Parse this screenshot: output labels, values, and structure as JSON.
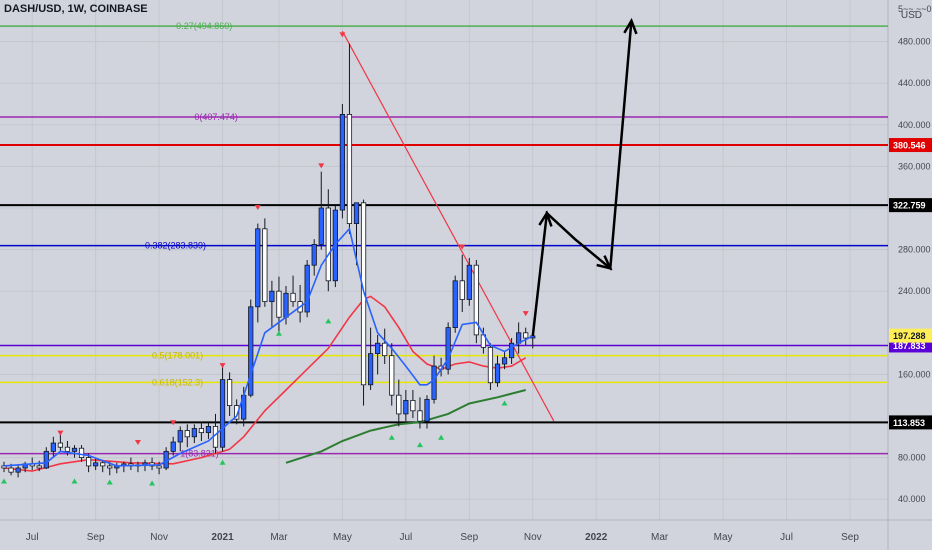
{
  "header": {
    "symbol": "DASH/USD, 1W, COINBASE",
    "currency": "USD",
    "top_tick": "5~~.~~0"
  },
  "colors": {
    "bg": "#d1d4dc",
    "grid": "#c4c7cf",
    "up": "#2962ff",
    "down": "#ffffff",
    "wick": "#131722",
    "ema_fast": "#2962ff",
    "ema_slow": "#f23645",
    "sma": "#2e7d32",
    "arrow_down": "#f23645",
    "arrow_up": "#22c55e"
  },
  "chart_data": {
    "type": "candlestick",
    "title": "DASH/USD, 1W, COINBASE",
    "ylim": [
      20,
      520
    ],
    "y_ticks": [
      40,
      80,
      160,
      240,
      280,
      320,
      360,
      400,
      440,
      480
    ],
    "y_tick_labels": [
      "40.000",
      "80.000",
      "160.000",
      "240.000",
      "280.000",
      "320.000",
      "360.000",
      "400.000",
      "440.000",
      "480.000"
    ],
    "x_labels": [
      {
        "label": "Jul",
        "t": 4
      },
      {
        "label": "Sep",
        "t": 13
      },
      {
        "label": "Nov",
        "t": 22
      },
      {
        "label": "2021",
        "t": 31
      },
      {
        "label": "Mar",
        "t": 39
      },
      {
        "label": "May",
        "t": 48
      },
      {
        "label": "Jul",
        "t": 57
      },
      {
        "label": "Sep",
        "t": 66
      },
      {
        "label": "Nov",
        "t": 75
      },
      {
        "label": "2022",
        "t": 84
      },
      {
        "label": "Mar",
        "t": 93
      },
      {
        "label": "May",
        "t": 102
      },
      {
        "label": "Jul",
        "t": 111
      },
      {
        "label": "Sep",
        "t": 120
      }
    ],
    "candles": [
      {
        "o": 72,
        "h": 76,
        "l": 66,
        "c": 70
      },
      {
        "o": 70,
        "h": 74,
        "l": 63,
        "c": 66
      },
      {
        "o": 66,
        "h": 73,
        "l": 61,
        "c": 70
      },
      {
        "o": 70,
        "h": 76,
        "l": 66,
        "c": 74
      },
      {
        "o": 74,
        "h": 80,
        "l": 68,
        "c": 72
      },
      {
        "o": 72,
        "h": 77,
        "l": 67,
        "c": 70
      },
      {
        "o": 70,
        "h": 90,
        "l": 69,
        "c": 86
      },
      {
        "o": 86,
        "h": 100,
        "l": 80,
        "c": 94
      },
      {
        "o": 94,
        "h": 103,
        "l": 86,
        "c": 90
      },
      {
        "o": 90,
        "h": 96,
        "l": 82,
        "c": 86
      },
      {
        "o": 86,
        "h": 92,
        "l": 80,
        "c": 89
      },
      {
        "o": 89,
        "h": 92,
        "l": 76,
        "c": 80
      },
      {
        "o": 80,
        "h": 84,
        "l": 66,
        "c": 72
      },
      {
        "o": 72,
        "h": 80,
        "l": 68,
        "c": 75
      },
      {
        "o": 75,
        "h": 78,
        "l": 66,
        "c": 72
      },
      {
        "o": 72,
        "h": 76,
        "l": 63,
        "c": 70
      },
      {
        "o": 70,
        "h": 75,
        "l": 65,
        "c": 72
      },
      {
        "o": 72,
        "h": 76,
        "l": 66,
        "c": 74
      },
      {
        "o": 74,
        "h": 80,
        "l": 68,
        "c": 72
      },
      {
        "o": 72,
        "h": 76,
        "l": 66,
        "c": 73
      },
      {
        "o": 73,
        "h": 78,
        "l": 67,
        "c": 75
      },
      {
        "o": 75,
        "h": 80,
        "l": 68,
        "c": 72
      },
      {
        "o": 72,
        "h": 76,
        "l": 64,
        "c": 70
      },
      {
        "o": 70,
        "h": 90,
        "l": 68,
        "c": 86
      },
      {
        "o": 86,
        "h": 100,
        "l": 82,
        "c": 95
      },
      {
        "o": 95,
        "h": 110,
        "l": 86,
        "c": 106
      },
      {
        "o": 106,
        "h": 112,
        "l": 90,
        "c": 100
      },
      {
        "o": 100,
        "h": 112,
        "l": 94,
        "c": 108
      },
      {
        "o": 108,
        "h": 114,
        "l": 96,
        "c": 104
      },
      {
        "o": 104,
        "h": 113,
        "l": 98,
        "c": 110
      },
      {
        "o": 110,
        "h": 122,
        "l": 84,
        "c": 90
      },
      {
        "o": 90,
        "h": 170,
        "l": 86,
        "c": 155
      },
      {
        "o": 155,
        "h": 162,
        "l": 120,
        "c": 130
      },
      {
        "o": 130,
        "h": 136,
        "l": 112,
        "c": 117
      },
      {
        "o": 117,
        "h": 148,
        "l": 110,
        "c": 140
      },
      {
        "o": 140,
        "h": 232,
        "l": 138,
        "c": 225
      },
      {
        "o": 225,
        "h": 305,
        "l": 210,
        "c": 300
      },
      {
        "o": 300,
        "h": 310,
        "l": 225,
        "c": 230
      },
      {
        "o": 230,
        "h": 250,
        "l": 205,
        "c": 240
      },
      {
        "o": 240,
        "h": 254,
        "l": 198,
        "c": 215
      },
      {
        "o": 215,
        "h": 245,
        "l": 208,
        "c": 238
      },
      {
        "o": 238,
        "h": 255,
        "l": 225,
        "c": 230
      },
      {
        "o": 230,
        "h": 246,
        "l": 210,
        "c": 220
      },
      {
        "o": 220,
        "h": 270,
        "l": 215,
        "c": 265
      },
      {
        "o": 265,
        "h": 290,
        "l": 255,
        "c": 285
      },
      {
        "o": 285,
        "h": 355,
        "l": 280,
        "c": 320
      },
      {
        "o": 320,
        "h": 338,
        "l": 240,
        "c": 250
      },
      {
        "o": 250,
        "h": 322,
        "l": 244,
        "c": 318
      },
      {
        "o": 318,
        "h": 420,
        "l": 310,
        "c": 410
      },
      {
        "o": 410,
        "h": 478,
        "l": 295,
        "c": 305
      },
      {
        "o": 305,
        "h": 320,
        "l": 265,
        "c": 325
      },
      {
        "o": 325,
        "h": 328,
        "l": 130,
        "c": 150
      },
      {
        "o": 150,
        "h": 205,
        "l": 145,
        "c": 180
      },
      {
        "o": 180,
        "h": 198,
        "l": 160,
        "c": 190
      },
      {
        "o": 190,
        "h": 204,
        "l": 170,
        "c": 178
      },
      {
        "o": 178,
        "h": 190,
        "l": 130,
        "c": 140
      },
      {
        "o": 140,
        "h": 155,
        "l": 110,
        "c": 122
      },
      {
        "o": 122,
        "h": 145,
        "l": 115,
        "c": 135
      },
      {
        "o": 135,
        "h": 145,
        "l": 118,
        "c": 125
      },
      {
        "o": 125,
        "h": 138,
        "l": 108,
        "c": 115
      },
      {
        "o": 115,
        "h": 140,
        "l": 108,
        "c": 136
      },
      {
        "o": 136,
        "h": 178,
        "l": 132,
        "c": 168
      },
      {
        "o": 168,
        "h": 176,
        "l": 158,
        "c": 165
      },
      {
        "o": 165,
        "h": 210,
        "l": 160,
        "c": 205
      },
      {
        "o": 205,
        "h": 255,
        "l": 200,
        "c": 250
      },
      {
        "o": 250,
        "h": 275,
        "l": 220,
        "c": 232
      },
      {
        "o": 232,
        "h": 272,
        "l": 226,
        "c": 265
      },
      {
        "o": 265,
        "h": 270,
        "l": 190,
        "c": 198
      },
      {
        "o": 198,
        "h": 205,
        "l": 180,
        "c": 186
      },
      {
        "o": 186,
        "h": 190,
        "l": 145,
        "c": 152
      },
      {
        "o": 152,
        "h": 178,
        "l": 148,
        "c": 170
      },
      {
        "o": 170,
        "h": 182,
        "l": 165,
        "c": 176
      },
      {
        "o": 176,
        "h": 195,
        "l": 170,
        "c": 190
      },
      {
        "o": 190,
        "h": 210,
        "l": 180,
        "c": 200
      },
      {
        "o": 200,
        "h": 205,
        "l": 188,
        "c": 195
      },
      {
        "o": 195,
        "h": 200,
        "l": 185,
        "c": 197
      }
    ],
    "ema_fast": [
      [
        0,
        72
      ],
      [
        6,
        75
      ],
      [
        8,
        86
      ],
      [
        12,
        82
      ],
      [
        16,
        72
      ],
      [
        22,
        73
      ],
      [
        25,
        84
      ],
      [
        29,
        96
      ],
      [
        31,
        108
      ],
      [
        33,
        120
      ],
      [
        35,
        160
      ],
      [
        37,
        200
      ],
      [
        40,
        215
      ],
      [
        43,
        230
      ],
      [
        45,
        265
      ],
      [
        47,
        285
      ],
      [
        49,
        300
      ],
      [
        51,
        240
      ],
      [
        53,
        200
      ],
      [
        55,
        185
      ],
      [
        57,
        168
      ],
      [
        59,
        150
      ],
      [
        60,
        150
      ],
      [
        61,
        155
      ],
      [
        63,
        175
      ],
      [
        65,
        208
      ],
      [
        67,
        210
      ],
      [
        69,
        188
      ],
      [
        71,
        182
      ],
      [
        73,
        190
      ],
      [
        75,
        197
      ]
    ],
    "ema_slow": [
      [
        0,
        70
      ],
      [
        4,
        67
      ],
      [
        8,
        74
      ],
      [
        12,
        78
      ],
      [
        18,
        75
      ],
      [
        24,
        74
      ],
      [
        28,
        80
      ],
      [
        32,
        88
      ],
      [
        34,
        100
      ],
      [
        37,
        125
      ],
      [
        40,
        145
      ],
      [
        43,
        165
      ],
      [
        46,
        185
      ],
      [
        49,
        215
      ],
      [
        51,
        232
      ],
      [
        52,
        235
      ],
      [
        54,
        225
      ],
      [
        56,
        205
      ],
      [
        58,
        182
      ],
      [
        60,
        170
      ],
      [
        62,
        165
      ],
      [
        64,
        170
      ],
      [
        66,
        172
      ],
      [
        68,
        168
      ],
      [
        70,
        166
      ],
      [
        72,
        168
      ],
      [
        74,
        176
      ]
    ],
    "sma": [
      [
        40,
        75
      ],
      [
        45,
        86
      ],
      [
        48,
        96
      ],
      [
        52,
        106
      ],
      [
        56,
        112
      ],
      [
        59,
        114
      ],
      [
        63,
        122
      ],
      [
        66,
        132
      ],
      [
        70,
        138
      ],
      [
        74,
        145
      ]
    ],
    "horizontal_lines": [
      {
        "y": 494.86,
        "color": "#4caf50",
        "label": "-0.27(494.860)",
        "label_color": "#4caf50",
        "text_t": 24
      },
      {
        "y": 407.474,
        "color": "#9c27b0",
        "label": "0(407.474)",
        "label_color": "#9c27b0",
        "text_t": 27
      },
      {
        "y": 380.546,
        "color": "#e00000",
        "label": "",
        "axis_label": "380.546",
        "axis_bg": "#e00000",
        "axis_fg": "#ffffff"
      },
      {
        "y": 322.759,
        "color": "#000000",
        "label": "",
        "axis_label": "322.759",
        "axis_bg": "#000000",
        "axis_fg": "#ffffff"
      },
      {
        "y": 283.839,
        "color": "#0000cc",
        "label": "0.382(283.839)",
        "label_color": "#0000cc",
        "text_t": 20
      },
      {
        "y": 187.833,
        "color": "#5b00d6",
        "label": "",
        "axis_label": "187.833",
        "axis_bg": "#5b00d6",
        "axis_fg": "#ffffff"
      },
      {
        "y": 178.0,
        "color": "#e6e600",
        "label": "0.5(178.001)",
        "label_color": "#c7b600",
        "text_t": 21
      },
      {
        "y": 152.3,
        "color": "#e6e600",
        "label": "0.618(152.3)",
        "label_color": "#c7b600",
        "text_t": 21
      },
      {
        "y": 113.853,
        "color": "#000000",
        "label": "",
        "axis_label": "113.853",
        "axis_bg": "#000000",
        "axis_fg": "#ffffff"
      },
      {
        "y": 83.821,
        "color": "#9c27b0",
        "label": "1(83.821)",
        "label_color": "#9c27b0",
        "text_t": 25
      }
    ],
    "current_price": {
      "y": 197.288,
      "label": "197.288",
      "bg": "#ffee58",
      "fg": "#131722"
    },
    "trendline": [
      [
        48,
        490
      ],
      [
        78,
        115
      ]
    ],
    "projection_path": [
      [
        75,
        197
      ],
      [
        77,
        315
      ],
      [
        81,
        290
      ],
      [
        86,
        262
      ],
      [
        89,
        500
      ]
    ],
    "down_markers": [
      [
        8,
        103
      ],
      [
        19,
        94
      ],
      [
        24,
        113
      ],
      [
        31,
        168
      ],
      [
        36,
        320
      ],
      [
        45,
        360
      ],
      [
        48,
        486
      ],
      [
        65,
        282
      ],
      [
        74,
        218
      ]
    ],
    "up_markers": [
      [
        0,
        58
      ],
      [
        10,
        58
      ],
      [
        15,
        57
      ],
      [
        21,
        56
      ],
      [
        31,
        76
      ],
      [
        39,
        200
      ],
      [
        46,
        212
      ],
      [
        55,
        100
      ],
      [
        59,
        93
      ],
      [
        62,
        100
      ],
      [
        71,
        133
      ]
    ]
  }
}
